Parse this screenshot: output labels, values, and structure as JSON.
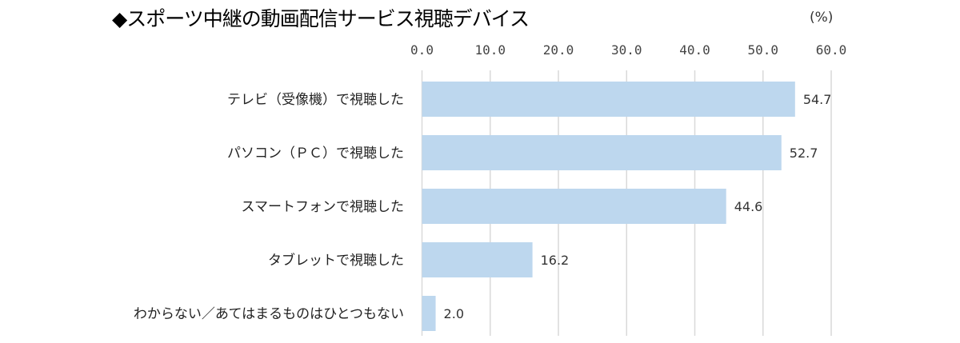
{
  "chart_data": {
    "type": "bar",
    "orientation": "horizontal",
    "title": "◆スポーツ中継の動画配信サービス視聴デバイス",
    "unit_label": "(%)",
    "categories": [
      "テレビ（受像機）で視聴した",
      "パソコン（ＰＣ）で視聴した",
      "スマートフォンで視聴した",
      "タブレットで視聴した",
      "わからない／あてはまるものはひとつもない"
    ],
    "values": [
      54.7,
      52.7,
      44.6,
      16.2,
      2.0
    ],
    "data_labels": [
      "54.7",
      "52.7",
      "44.6",
      "16.2",
      "2.0"
    ],
    "xlim": [
      0,
      60
    ],
    "x_ticks": [
      "0.0",
      "10.0",
      "20.0",
      "30.0",
      "40.0",
      "50.0",
      "60.0"
    ],
    "x_axis_position": "top",
    "grid": true,
    "bar_color": "#bdd7ee",
    "grid_color": "#d9d9d9"
  }
}
